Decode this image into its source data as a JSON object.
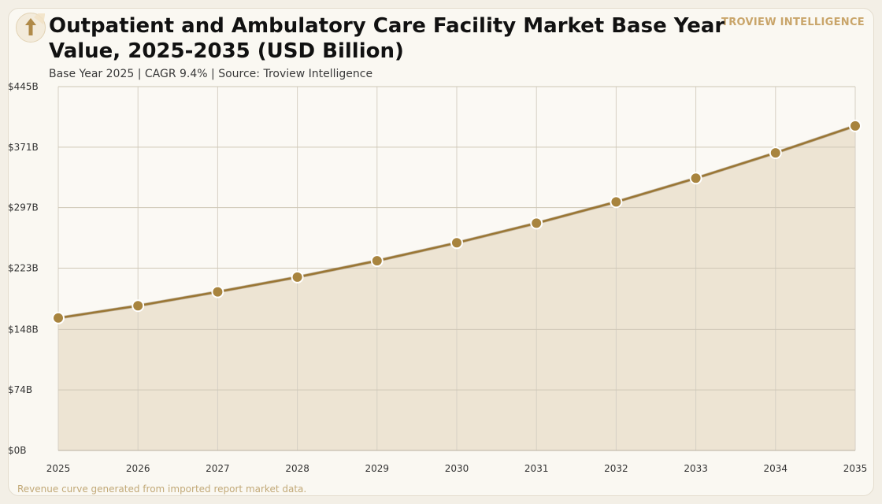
{
  "header": {
    "title": "Outpatient and Ambulatory Care Facility Market Base Year Value, 2025-2035 (USD Billion)",
    "subtitle": "Base Year 2025 | CAGR 9.4% | Source: Troview Intelligence",
    "brand": "TROVIEW INTELLIGENCE",
    "logo_icon": "upload-arrow-icon"
  },
  "footer": {
    "note": "Revenue curve generated from imported report market data."
  },
  "colors": {
    "line": "#9a7634",
    "marker": "#a8843e",
    "area": "#ede4d3",
    "grid": "#cfc7b6",
    "accent": "#c9a56a"
  },
  "chart_data": {
    "type": "area",
    "title": "Outpatient and Ambulatory Care Facility Market Base Year Value, 2025-2035 (USD Billion)",
    "xlabel": "",
    "ylabel": "",
    "x": [
      2025,
      2026,
      2027,
      2028,
      2029,
      2030,
      2031,
      2032,
      2033,
      2034,
      2035
    ],
    "series": [
      {
        "values": [
          162,
          177,
          194,
          212,
          232,
          254,
          278,
          304,
          333,
          364,
          397
        ]
      }
    ],
    "ylim": [
      0,
      445
    ],
    "yticks": [
      0,
      74,
      148,
      223,
      297,
      371,
      445
    ],
    "ytick_labels": [
      "$0B",
      "$74B",
      "$148B",
      "$223B",
      "$297B",
      "$371B",
      "$445B"
    ],
    "xtick_labels": [
      "2025",
      "2026",
      "2027",
      "2028",
      "2029",
      "2030",
      "2031",
      "2032",
      "2033",
      "2034",
      "2035"
    ],
    "grid": true,
    "legend": "none"
  }
}
